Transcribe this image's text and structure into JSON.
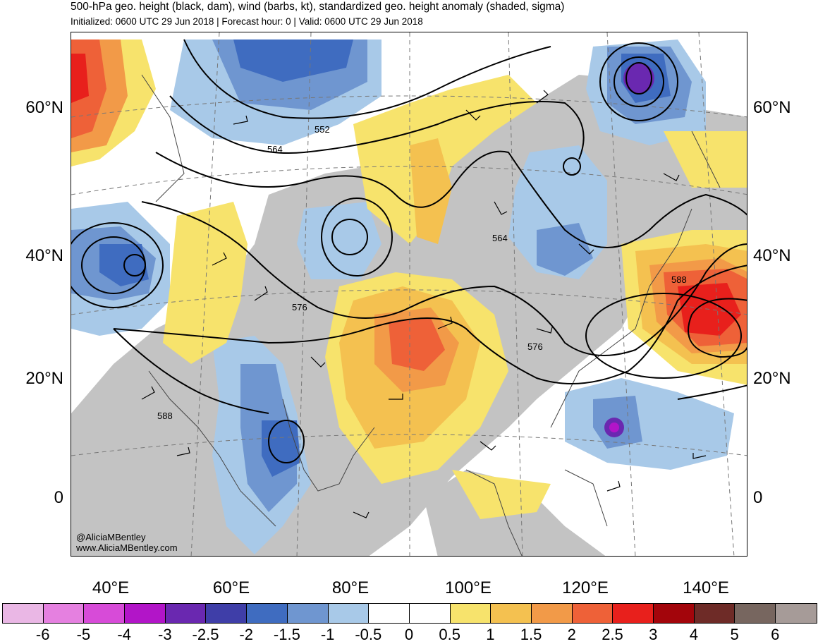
{
  "title": "500-hPa geo. height (black, dam), wind (barbs, kt), standardized geo. height anomaly (shaded, sigma)",
  "subtitle": "Initialized: 0600 UTC 29 Jun 2018 | Forecast hour: 0 | Valid: 0600 UTC 29 Jun 2018",
  "lat_labels": [
    "60°N",
    "40°N",
    "20°N",
    "0"
  ],
  "lon_labels": [
    "40°E",
    "60°E",
    "80°E",
    "100°E",
    "120°E",
    "140°E"
  ],
  "contour_labels": [
    "552",
    "564",
    "564",
    "576",
    "576",
    "588",
    "588"
  ],
  "credits": [
    "@AliciaMBentley",
    "www.AliciaMBentley.com"
  ],
  "colorbar": {
    "labels": [
      "-6",
      "-5",
      "-4",
      "-3",
      "-2.5",
      "-2",
      "-1.5",
      "-1",
      "-0.5",
      "0",
      "0.5",
      "1",
      "1.5",
      "2",
      "2.5",
      "3",
      "4",
      "5",
      "6"
    ],
    "colors": [
      "#eab7e5",
      "#e580e0",
      "#d74bd8",
      "#b215c8",
      "#6a28b0",
      "#3f3ea8",
      "#3f6cc0",
      "#6f96d0",
      "#a8c9e8",
      "#ffffff",
      "#ffffff",
      "#f7e36c",
      "#f4c150",
      "#f29a48",
      "#ee6138",
      "#e8201c",
      "#a3050b",
      "#6e2b27",
      "#77665f",
      "#a69b98"
    ]
  },
  "map_colors": {
    "gray": "#c3c3c3",
    "blue1": "#a8c9e8",
    "blue2": "#6f96d0",
    "blue3": "#3f6cc0",
    "purple": "#6a28b0",
    "yellow": "#f7e36c",
    "orange1": "#f4c150",
    "orange2": "#f29a48",
    "red1": "#ee6138",
    "red2": "#e8201c"
  }
}
